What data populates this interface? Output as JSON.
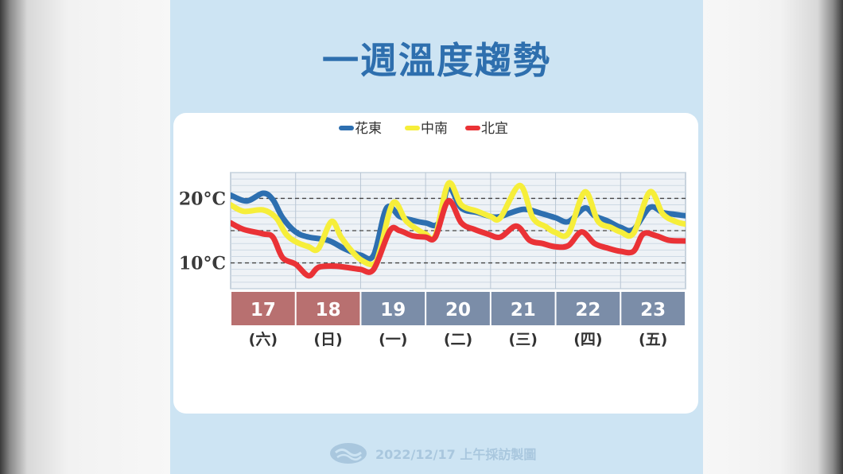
{
  "title": "一週溫度趨勢",
  "footer": {
    "source": "2022/12/17 上午採訪製圖",
    "logo": "cwb-logo-icon"
  },
  "colors": {
    "background": "#cde4f3",
    "title": "#2e6fae",
    "weekend_day": "#b87070",
    "weekday_day": "#7b8da8"
  },
  "chart_data": {
    "type": "line",
    "title": "一週溫度趨勢",
    "ylabel": "",
    "ylim": [
      6,
      24
    ],
    "y_ticks": [
      {
        "value": 20,
        "label": "20°C"
      },
      {
        "value": 10,
        "label": "10°C"
      }
    ],
    "dashed_lines": [
      20,
      15,
      10
    ],
    "grid": true,
    "legend_position": "top-center",
    "days": [
      {
        "date": "17",
        "weekday": "(六)",
        "weekend": true
      },
      {
        "date": "18",
        "weekday": "(日)",
        "weekend": true
      },
      {
        "date": "19",
        "weekday": "(一)",
        "weekend": false
      },
      {
        "date": "20",
        "weekday": "(二)",
        "weekend": false
      },
      {
        "date": "21",
        "weekday": "(三)",
        "weekend": false
      },
      {
        "date": "22",
        "weekday": "(四)",
        "weekend": false
      },
      {
        "date": "23",
        "weekday": "(五)",
        "weekend": false
      }
    ],
    "x_unit": "day index (0 = start of 17th, 7 = end of 23rd)",
    "series": [
      {
        "name": "花東",
        "color": "#2d6fb0",
        "points": [
          [
            0,
            20.5
          ],
          [
            0.25,
            19.6
          ],
          [
            0.5,
            20.8
          ],
          [
            0.65,
            19.8
          ],
          [
            0.8,
            17
          ],
          [
            1,
            14.8
          ],
          [
            1.2,
            14
          ],
          [
            1.5,
            13.5
          ],
          [
            1.75,
            12.2
          ],
          [
            2,
            11.2
          ],
          [
            2.2,
            11.2
          ],
          [
            2.4,
            18.5
          ],
          [
            2.6,
            17.2
          ],
          [
            2.8,
            16.6
          ],
          [
            3,
            16.2
          ],
          [
            3.2,
            16.2
          ],
          [
            3.35,
            21.7
          ],
          [
            3.55,
            18.5
          ],
          [
            3.8,
            17.8
          ],
          [
            4,
            17.2
          ],
          [
            4.15,
            17.2
          ],
          [
            4.5,
            18.3
          ],
          [
            4.8,
            17.6
          ],
          [
            5,
            17
          ],
          [
            5.2,
            16.4
          ],
          [
            5.45,
            18.5
          ],
          [
            5.6,
            17.3
          ],
          [
            5.8,
            16.5
          ],
          [
            6,
            15.5
          ],
          [
            6.2,
            15.2
          ],
          [
            6.45,
            18.6
          ],
          [
            6.65,
            17.8
          ],
          [
            6.85,
            17.5
          ],
          [
            7,
            17.3
          ]
        ]
      },
      {
        "name": "中南",
        "color": "#f6ee3a",
        "points": [
          [
            0,
            19
          ],
          [
            0.2,
            18
          ],
          [
            0.5,
            18.2
          ],
          [
            0.7,
            17
          ],
          [
            0.85,
            14.5
          ],
          [
            1,
            13.3
          ],
          [
            1.2,
            12.5
          ],
          [
            1.35,
            12.2
          ],
          [
            1.55,
            16.4
          ],
          [
            1.7,
            14
          ],
          [
            1.85,
            12
          ],
          [
            2,
            10.5
          ],
          [
            2.2,
            9.8
          ],
          [
            2.3,
            12
          ],
          [
            2.5,
            19.3
          ],
          [
            2.7,
            16.5
          ],
          [
            2.9,
            15
          ],
          [
            3,
            14.5
          ],
          [
            3.15,
            14.2
          ],
          [
            3.35,
            22.3
          ],
          [
            3.55,
            19
          ],
          [
            3.8,
            18
          ],
          [
            4,
            17.2
          ],
          [
            4.15,
            17
          ],
          [
            4.45,
            22
          ],
          [
            4.65,
            17
          ],
          [
            4.85,
            15.6
          ],
          [
            5,
            14.7
          ],
          [
            5.2,
            14.6
          ],
          [
            5.45,
            21
          ],
          [
            5.65,
            16.5
          ],
          [
            5.85,
            15.5
          ],
          [
            6,
            14.8
          ],
          [
            6.2,
            14.6
          ],
          [
            6.45,
            21
          ],
          [
            6.65,
            17.6
          ],
          [
            6.85,
            16.4
          ],
          [
            7,
            16
          ]
        ]
      },
      {
        "name": "北宜",
        "color": "#ea3236",
        "points": [
          [
            0,
            16.2
          ],
          [
            0.2,
            15.2
          ],
          [
            0.5,
            14.5
          ],
          [
            0.65,
            14
          ],
          [
            0.8,
            10.8
          ],
          [
            1,
            9.8
          ],
          [
            1.2,
            8
          ],
          [
            1.35,
            9.3
          ],
          [
            1.6,
            9.5
          ],
          [
            1.85,
            9.2
          ],
          [
            2,
            9
          ],
          [
            2.2,
            9
          ],
          [
            2.45,
            15
          ],
          [
            2.6,
            15
          ],
          [
            2.8,
            14.2
          ],
          [
            3,
            14
          ],
          [
            3.15,
            14
          ],
          [
            3.35,
            19.6
          ],
          [
            3.55,
            16.2
          ],
          [
            3.75,
            15.2
          ],
          [
            3.95,
            14.5
          ],
          [
            4.15,
            14
          ],
          [
            4.4,
            15.7
          ],
          [
            4.6,
            13.5
          ],
          [
            4.8,
            13
          ],
          [
            5,
            12.5
          ],
          [
            5.2,
            12.7
          ],
          [
            5.4,
            14.8
          ],
          [
            5.6,
            13
          ],
          [
            5.8,
            12.3
          ],
          [
            6,
            11.8
          ],
          [
            6.2,
            11.8
          ],
          [
            6.35,
            14.5
          ],
          [
            6.55,
            14.2
          ],
          [
            6.75,
            13.5
          ],
          [
            7,
            13.4
          ]
        ]
      }
    ]
  }
}
